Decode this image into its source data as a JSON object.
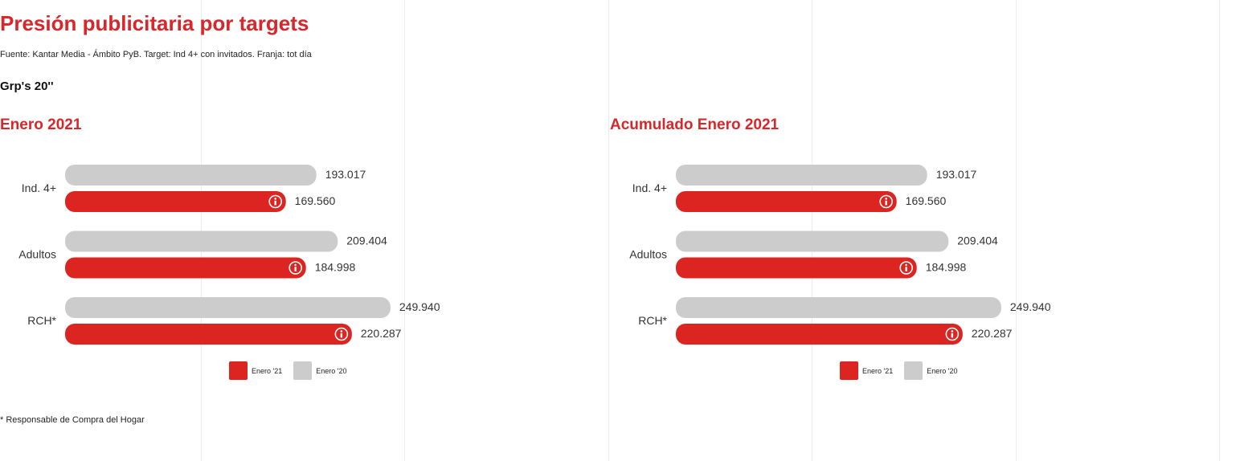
{
  "page": {
    "title": "Presión publicitaria por targets",
    "source": "Fuente: Kantar Media - Ámbito PyB. Target: Ind 4+ con invitados. Franja: tot día",
    "subtitle": "Grp's 20''",
    "footnote": "* Responsable de Compra del Hogar"
  },
  "colors": {
    "enero21": "#dc2521",
    "enero20": "#cccccc",
    "accent": "#d8272b"
  },
  "icons": {
    "bar_badge": "info-icon"
  },
  "chart_data": [
    {
      "type": "bar",
      "orientation": "horizontal",
      "title": "Enero 2021",
      "categories": [
        "Ind. 4+",
        "Adultos",
        "RCH*"
      ],
      "series": [
        {
          "name": "Enero '20",
          "values": [
            193017,
            209404,
            249940
          ],
          "labels": [
            "193.017",
            "209.404",
            "249.940"
          ]
        },
        {
          "name": "Enero '21",
          "values": [
            169560,
            184998,
            220287
          ],
          "labels": [
            "169.560",
            "184.998",
            "220.287"
          ]
        }
      ],
      "xlim": [
        0,
        250000
      ],
      "grid": true,
      "legend": {
        "position": "bottom",
        "entries": [
          "Enero '21",
          "Enero '20"
        ]
      }
    },
    {
      "type": "bar",
      "orientation": "horizontal",
      "title": "Acumulado Enero 2021",
      "categories": [
        "Ind. 4+",
        "Adultos",
        "RCH*"
      ],
      "series": [
        {
          "name": "Enero '20",
          "values": [
            193017,
            209404,
            249940
          ],
          "labels": [
            "193.017",
            "209.404",
            "249.940"
          ]
        },
        {
          "name": "Enero '21",
          "values": [
            169560,
            184998,
            220287
          ],
          "labels": [
            "169.560",
            "184.998",
            "220.287"
          ]
        }
      ],
      "xlim": [
        0,
        250000
      ],
      "grid": true,
      "legend": {
        "position": "bottom",
        "entries": [
          "Enero '21",
          "Enero '20"
        ]
      }
    }
  ]
}
